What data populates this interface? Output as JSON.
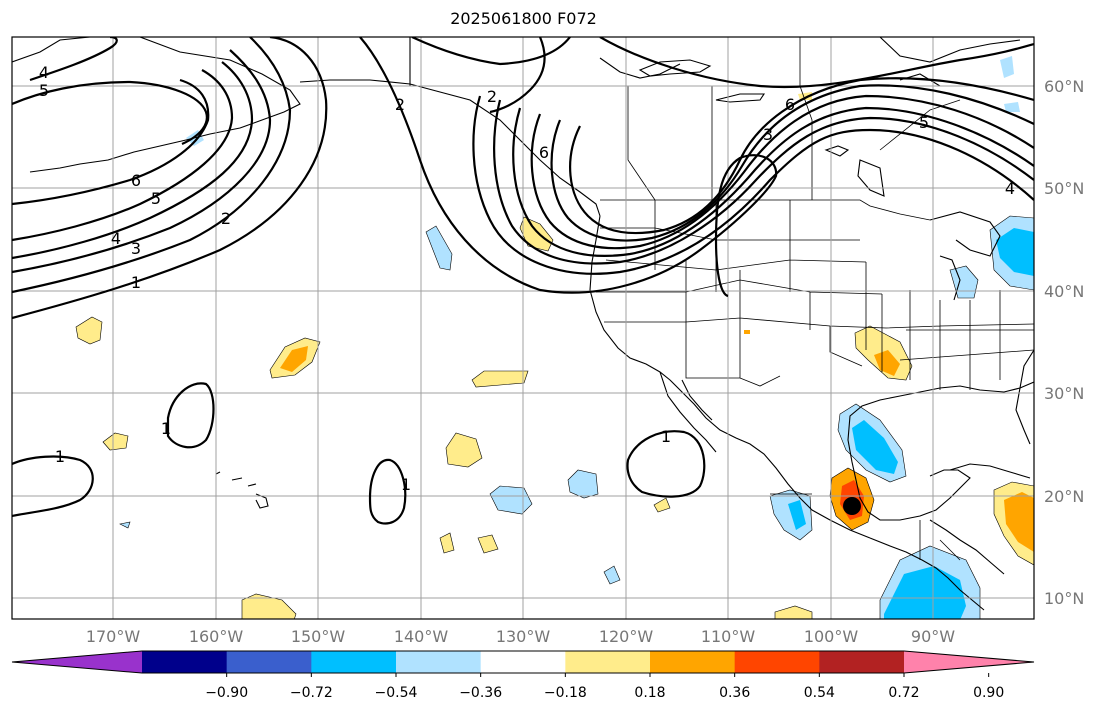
{
  "title": "2025061800 F072",
  "lat_labels": [
    "60°N",
    "50°N",
    "40°N",
    "30°N",
    "20°N",
    "10°N"
  ],
  "lon_labels": [
    "170°W",
    "160°W",
    "150°W",
    "140°W",
    "130°W",
    "120°W",
    "110°W",
    "100°W",
    "90°W"
  ],
  "colorbar": {
    "colors": [
      "#9932cc",
      "#00008b",
      "#3a5fcd",
      "#00bfff",
      "#b0e2ff",
      "#ffffff",
      "#ffec8b",
      "#ffa500",
      "#ff4500",
      "#b22222",
      "#ff82ab"
    ],
    "tick_labels": [
      "−0.90",
      "−0.72",
      "−0.54",
      "−0.36",
      "−0.18",
      "0.18",
      "0.36",
      "0.54",
      "0.72",
      "0.90"
    ]
  },
  "contour_labels": [
    "5",
    "4",
    "6",
    "5",
    "4",
    "3",
    "2",
    "1",
    "2",
    "2",
    "6",
    "6",
    "3",
    "5",
    "4",
    "1",
    "1",
    "1",
    "1"
  ],
  "colors": {
    "land_line": "#000000",
    "grid": "#a0a0a0",
    "contour": "#000000"
  }
}
